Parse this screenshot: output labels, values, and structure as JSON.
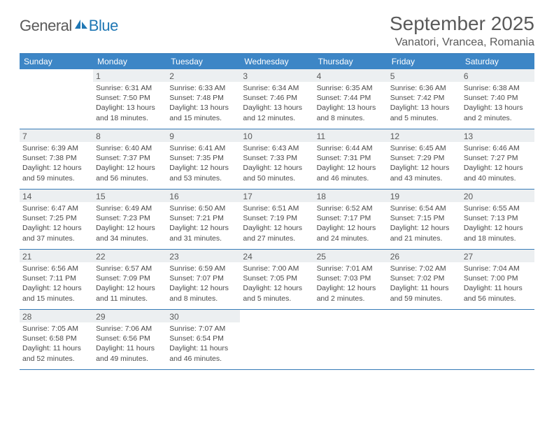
{
  "brand": {
    "general": "General",
    "blue": "Blue"
  },
  "title": "September 2025",
  "location": "Vanatori, Vrancea, Romania",
  "colors": {
    "header_bg": "#3d86c6",
    "header_text": "#ffffff",
    "rule": "#357ab7",
    "daybar_bg": "#eceff1",
    "text": "#4a4a4a",
    "logo_blue": "#1f77b4"
  },
  "dow": [
    "Sunday",
    "Monday",
    "Tuesday",
    "Wednesday",
    "Thursday",
    "Friday",
    "Saturday"
  ],
  "days": [
    {
      "n": "",
      "sunrise": "",
      "sunset": "",
      "daylight": ""
    },
    {
      "n": "1",
      "sunrise": "Sunrise: 6:31 AM",
      "sunset": "Sunset: 7:50 PM",
      "daylight": "Daylight: 13 hours and 18 minutes."
    },
    {
      "n": "2",
      "sunrise": "Sunrise: 6:33 AM",
      "sunset": "Sunset: 7:48 PM",
      "daylight": "Daylight: 13 hours and 15 minutes."
    },
    {
      "n": "3",
      "sunrise": "Sunrise: 6:34 AM",
      "sunset": "Sunset: 7:46 PM",
      "daylight": "Daylight: 13 hours and 12 minutes."
    },
    {
      "n": "4",
      "sunrise": "Sunrise: 6:35 AM",
      "sunset": "Sunset: 7:44 PM",
      "daylight": "Daylight: 13 hours and 8 minutes."
    },
    {
      "n": "5",
      "sunrise": "Sunrise: 6:36 AM",
      "sunset": "Sunset: 7:42 PM",
      "daylight": "Daylight: 13 hours and 5 minutes."
    },
    {
      "n": "6",
      "sunrise": "Sunrise: 6:38 AM",
      "sunset": "Sunset: 7:40 PM",
      "daylight": "Daylight: 13 hours and 2 minutes."
    },
    {
      "n": "7",
      "sunrise": "Sunrise: 6:39 AM",
      "sunset": "Sunset: 7:38 PM",
      "daylight": "Daylight: 12 hours and 59 minutes."
    },
    {
      "n": "8",
      "sunrise": "Sunrise: 6:40 AM",
      "sunset": "Sunset: 7:37 PM",
      "daylight": "Daylight: 12 hours and 56 minutes."
    },
    {
      "n": "9",
      "sunrise": "Sunrise: 6:41 AM",
      "sunset": "Sunset: 7:35 PM",
      "daylight": "Daylight: 12 hours and 53 minutes."
    },
    {
      "n": "10",
      "sunrise": "Sunrise: 6:43 AM",
      "sunset": "Sunset: 7:33 PM",
      "daylight": "Daylight: 12 hours and 50 minutes."
    },
    {
      "n": "11",
      "sunrise": "Sunrise: 6:44 AM",
      "sunset": "Sunset: 7:31 PM",
      "daylight": "Daylight: 12 hours and 46 minutes."
    },
    {
      "n": "12",
      "sunrise": "Sunrise: 6:45 AM",
      "sunset": "Sunset: 7:29 PM",
      "daylight": "Daylight: 12 hours and 43 minutes."
    },
    {
      "n": "13",
      "sunrise": "Sunrise: 6:46 AM",
      "sunset": "Sunset: 7:27 PM",
      "daylight": "Daylight: 12 hours and 40 minutes."
    },
    {
      "n": "14",
      "sunrise": "Sunrise: 6:47 AM",
      "sunset": "Sunset: 7:25 PM",
      "daylight": "Daylight: 12 hours and 37 minutes."
    },
    {
      "n": "15",
      "sunrise": "Sunrise: 6:49 AM",
      "sunset": "Sunset: 7:23 PM",
      "daylight": "Daylight: 12 hours and 34 minutes."
    },
    {
      "n": "16",
      "sunrise": "Sunrise: 6:50 AM",
      "sunset": "Sunset: 7:21 PM",
      "daylight": "Daylight: 12 hours and 31 minutes."
    },
    {
      "n": "17",
      "sunrise": "Sunrise: 6:51 AM",
      "sunset": "Sunset: 7:19 PM",
      "daylight": "Daylight: 12 hours and 27 minutes."
    },
    {
      "n": "18",
      "sunrise": "Sunrise: 6:52 AM",
      "sunset": "Sunset: 7:17 PM",
      "daylight": "Daylight: 12 hours and 24 minutes."
    },
    {
      "n": "19",
      "sunrise": "Sunrise: 6:54 AM",
      "sunset": "Sunset: 7:15 PM",
      "daylight": "Daylight: 12 hours and 21 minutes."
    },
    {
      "n": "20",
      "sunrise": "Sunrise: 6:55 AM",
      "sunset": "Sunset: 7:13 PM",
      "daylight": "Daylight: 12 hours and 18 minutes."
    },
    {
      "n": "21",
      "sunrise": "Sunrise: 6:56 AM",
      "sunset": "Sunset: 7:11 PM",
      "daylight": "Daylight: 12 hours and 15 minutes."
    },
    {
      "n": "22",
      "sunrise": "Sunrise: 6:57 AM",
      "sunset": "Sunset: 7:09 PM",
      "daylight": "Daylight: 12 hours and 11 minutes."
    },
    {
      "n": "23",
      "sunrise": "Sunrise: 6:59 AM",
      "sunset": "Sunset: 7:07 PM",
      "daylight": "Daylight: 12 hours and 8 minutes."
    },
    {
      "n": "24",
      "sunrise": "Sunrise: 7:00 AM",
      "sunset": "Sunset: 7:05 PM",
      "daylight": "Daylight: 12 hours and 5 minutes."
    },
    {
      "n": "25",
      "sunrise": "Sunrise: 7:01 AM",
      "sunset": "Sunset: 7:03 PM",
      "daylight": "Daylight: 12 hours and 2 minutes."
    },
    {
      "n": "26",
      "sunrise": "Sunrise: 7:02 AM",
      "sunset": "Sunset: 7:02 PM",
      "daylight": "Daylight: 11 hours and 59 minutes."
    },
    {
      "n": "27",
      "sunrise": "Sunrise: 7:04 AM",
      "sunset": "Sunset: 7:00 PM",
      "daylight": "Daylight: 11 hours and 56 minutes."
    },
    {
      "n": "28",
      "sunrise": "Sunrise: 7:05 AM",
      "sunset": "Sunset: 6:58 PM",
      "daylight": "Daylight: 11 hours and 52 minutes."
    },
    {
      "n": "29",
      "sunrise": "Sunrise: 7:06 AM",
      "sunset": "Sunset: 6:56 PM",
      "daylight": "Daylight: 11 hours and 49 minutes."
    },
    {
      "n": "30",
      "sunrise": "Sunrise: 7:07 AM",
      "sunset": "Sunset: 6:54 PM",
      "daylight": "Daylight: 11 hours and 46 minutes."
    },
    {
      "n": "",
      "sunrise": "",
      "sunset": "",
      "daylight": ""
    },
    {
      "n": "",
      "sunrise": "",
      "sunset": "",
      "daylight": ""
    },
    {
      "n": "",
      "sunrise": "",
      "sunset": "",
      "daylight": ""
    },
    {
      "n": "",
      "sunrise": "",
      "sunset": "",
      "daylight": ""
    }
  ]
}
